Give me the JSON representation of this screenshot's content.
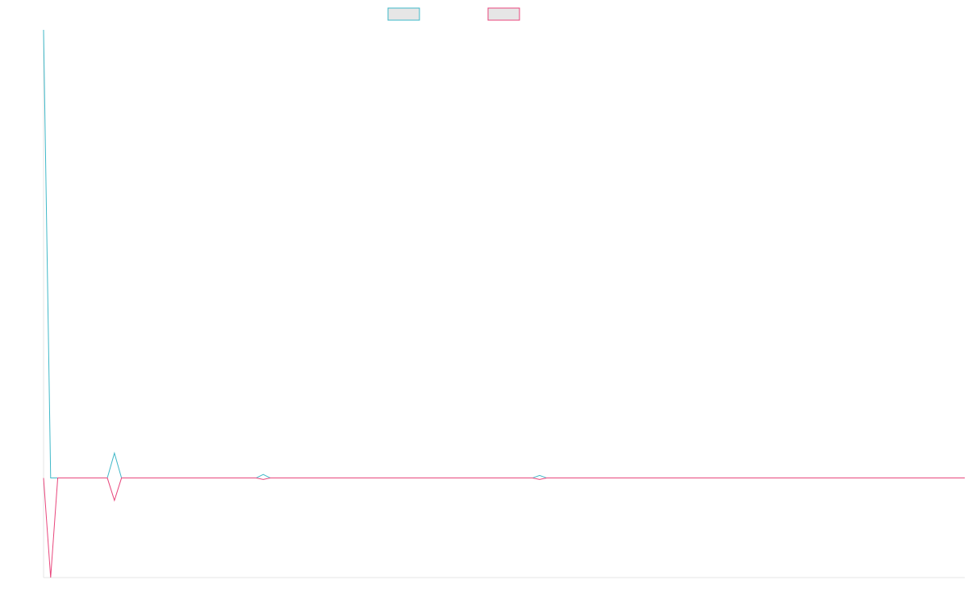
{
  "chart_data": {
    "type": "line",
    "title": "",
    "xlabel": "",
    "ylabel": "",
    "grid": false,
    "legend_position": "top-center",
    "x": [
      0,
      1,
      2,
      3,
      4,
      5,
      6,
      7,
      8,
      9,
      10,
      11,
      12,
      13,
      14,
      15,
      16,
      17,
      18,
      19,
      20,
      21,
      22,
      23,
      24,
      25,
      26,
      27,
      28,
      29,
      30,
      31,
      32,
      33,
      34,
      35,
      36,
      37,
      38,
      39,
      40,
      41,
      42,
      43,
      44,
      45,
      46,
      47,
      48,
      49,
      50,
      51,
      52,
      53,
      54,
      55,
      56,
      57,
      58,
      59,
      60,
      61,
      62,
      63,
      64,
      65,
      66,
      67,
      68,
      69,
      70,
      71,
      72,
      73,
      74,
      75,
      76,
      77,
      78,
      79,
      80,
      81,
      82,
      83,
      84,
      85,
      86,
      87,
      88,
      89,
      90,
      91,
      92,
      93,
      94,
      95,
      96,
      97,
      98,
      99,
      100,
      101,
      102,
      103,
      104,
      105,
      106,
      107,
      108,
      109,
      110,
      111,
      112,
      113,
      114,
      115,
      116,
      117,
      118,
      119,
      120,
      121,
      122,
      123,
      124,
      125,
      126,
      127,
      128,
      129,
      130
    ],
    "ylim": [
      -20,
      90
    ],
    "series": [
      {
        "name": "",
        "color": "#3fb8c8",
        "values": [
          90,
          0,
          0,
          0,
          0,
          0,
          0,
          0,
          0,
          0,
          5,
          0,
          0,
          0,
          0,
          0,
          0,
          0,
          0,
          0,
          0,
          0,
          0,
          0,
          0,
          0,
          0,
          0,
          0,
          0,
          0,
          0.7,
          0,
          0,
          0,
          0,
          0,
          0,
          0,
          0,
          0,
          0,
          0,
          0,
          0,
          0,
          0,
          0,
          0,
          0,
          0,
          0,
          0,
          0,
          0,
          0,
          0,
          0,
          0,
          0,
          0,
          0,
          0,
          0,
          0,
          0,
          0,
          0,
          0,
          0,
          0.5,
          0,
          0,
          0,
          0,
          0,
          0,
          0,
          0,
          0,
          0,
          0,
          0,
          0,
          0,
          0,
          0,
          0,
          0,
          0,
          0,
          0,
          0,
          0,
          0,
          0,
          0,
          0,
          0,
          0,
          0,
          0,
          0,
          0,
          0,
          0,
          0,
          0,
          0,
          0,
          0,
          0,
          0,
          0,
          0,
          0,
          0,
          0,
          0,
          0,
          0,
          0,
          0,
          0,
          0,
          0,
          0,
          0,
          0,
          0,
          0
        ]
      },
      {
        "name": "",
        "color": "#e8467c",
        "values": [
          0,
          -20,
          0,
          0,
          0,
          0,
          0,
          0,
          0,
          0,
          -4.5,
          0,
          0,
          0,
          0,
          0,
          0,
          0,
          0,
          0,
          0,
          0,
          0,
          0,
          0,
          0,
          0,
          0,
          0,
          0,
          0,
          -0.3,
          0,
          0,
          0,
          0,
          0,
          0,
          0,
          0,
          0,
          0,
          0,
          0,
          0,
          0,
          0,
          0,
          0,
          0,
          0,
          0,
          0,
          0,
          0,
          0,
          0,
          0,
          0,
          0,
          0,
          0,
          0,
          0,
          0,
          0,
          0,
          0,
          0,
          0,
          -0.3,
          0,
          0,
          0,
          0,
          0,
          0,
          0,
          0,
          0,
          0,
          0,
          0,
          0,
          0,
          0,
          0,
          0,
          0,
          0,
          0,
          0,
          0,
          0,
          0,
          0,
          0,
          0,
          0,
          0,
          0,
          0,
          0,
          0,
          0,
          0,
          0,
          0,
          0,
          0,
          0,
          0,
          0,
          0,
          0,
          0,
          0,
          0,
          0,
          0,
          0,
          0,
          0,
          0,
          0,
          0,
          0,
          0,
          0,
          0,
          0
        ]
      }
    ]
  }
}
